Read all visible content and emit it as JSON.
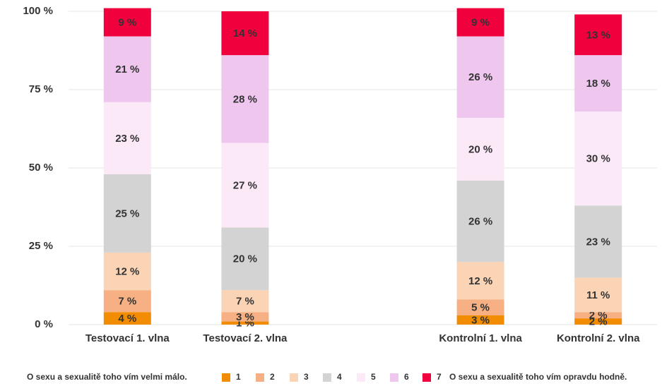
{
  "chart_data": {
    "type": "stacked_bar",
    "categories": [
      "Testovací 1. vlna",
      "Testovací 2. vlna",
      null,
      "Kontrolní 1. vlna",
      "Kontrolní 2. vlna"
    ],
    "series": [
      {
        "name": "1",
        "color": "#f28c00",
        "values": [
          4,
          1,
          null,
          3,
          2
        ],
        "value_labels": [
          "4 %",
          "1 %",
          null,
          "3 %",
          "2 %"
        ]
      },
      {
        "name": "2",
        "color": "#f6b083",
        "values": [
          7,
          3,
          null,
          5,
          2
        ],
        "value_labels": [
          "7 %",
          "3 %",
          null,
          "5 %",
          "2 %"
        ]
      },
      {
        "name": "3",
        "color": "#fbd3b5",
        "values": [
          12,
          7,
          null,
          12,
          11
        ],
        "value_labels": [
          "12 %",
          "7 %",
          null,
          "12 %",
          "11 %"
        ]
      },
      {
        "name": "4",
        "color": "#d3d3d3",
        "values": [
          25,
          20,
          null,
          26,
          23
        ],
        "value_labels": [
          "25 %",
          "20 %",
          null,
          "26 %",
          "23 %"
        ]
      },
      {
        "name": "5",
        "color": "#fbe9f8",
        "values": [
          23,
          27,
          null,
          20,
          30
        ],
        "value_labels": [
          "23 %",
          "27 %",
          null,
          "20 %",
          "30 %"
        ]
      },
      {
        "name": "6",
        "color": "#eec6ee",
        "values": [
          21,
          28,
          null,
          26,
          18
        ],
        "value_labels": [
          "21 %",
          "28 %",
          null,
          "26 %",
          "18 %"
        ]
      },
      {
        "name": "7",
        "color": "#f0003c",
        "values": [
          9,
          14,
          null,
          9,
          13
        ],
        "value_labels": [
          "9 %",
          "14 %",
          null,
          "9 %",
          "13 %"
        ]
      }
    ],
    "ylim": [
      0,
      100
    ],
    "yticks": [
      {
        "value": 0,
        "label": "0 %"
      },
      {
        "value": 25,
        "label": "25 %"
      },
      {
        "value": 50,
        "label": "50 %"
      },
      {
        "value": 75,
        "label": "75 %"
      },
      {
        "value": 100,
        "label": "100 %"
      }
    ],
    "grid": true,
    "legend_start_label": "O sexu a sexualitě toho vím velmi málo.",
    "legend_end_label": "O sexu a sexualitě toho vím opravdu hodně."
  }
}
